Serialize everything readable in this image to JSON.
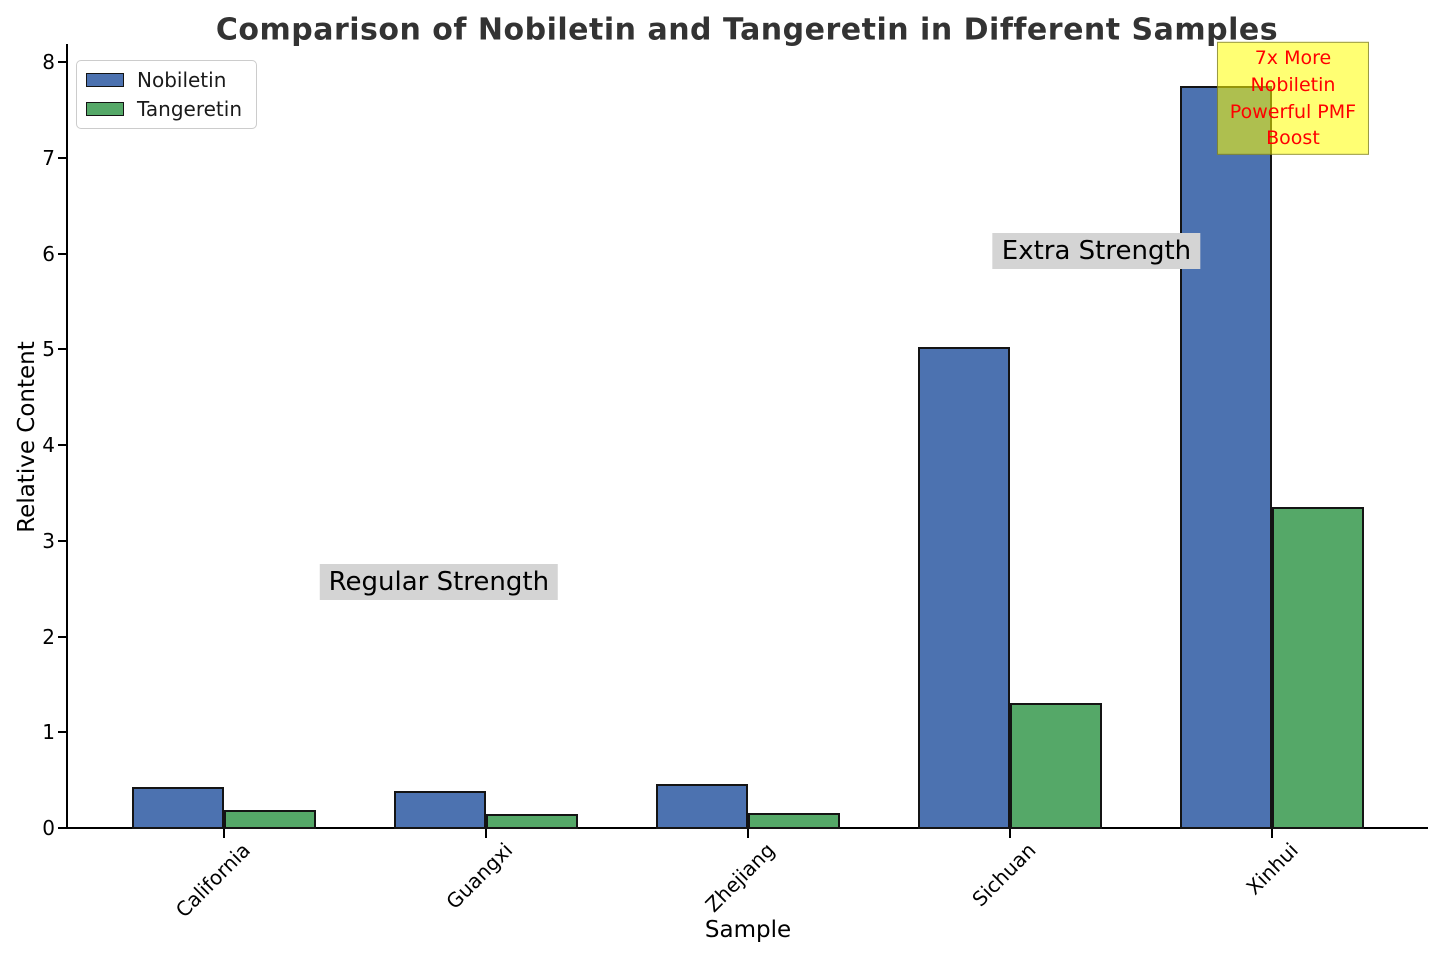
{
  "chart_data": {
    "type": "bar",
    "title": "Comparison of Nobiletin and Tangeretin in Different Samples",
    "xlabel": "Sample",
    "ylabel": "Relative Content",
    "categories": [
      "California",
      "Guangxi",
      "Zhejiang",
      "Sichuan",
      "Xinhui"
    ],
    "series": [
      {
        "name": "Nobiletin",
        "color": "#4C72B0",
        "values": [
          0.43,
          0.39,
          0.46,
          5.02,
          7.75
        ]
      },
      {
        "name": "Tangeretin",
        "color": "#55A868",
        "values": [
          0.19,
          0.15,
          0.16,
          1.31,
          3.35
        ]
      }
    ],
    "ylim": [
      0,
      8.2
    ],
    "yticks": [
      0,
      1,
      2,
      3,
      4,
      5,
      6,
      7,
      8
    ],
    "grid": false,
    "legend_position": "upper left",
    "annotations": [
      {
        "id": "regular-strength",
        "text": "Regular Strength",
        "style": "gray-box",
        "x": 0.82,
        "y": 2.57,
        "color": "#000000",
        "bg": "#d4d4d4"
      },
      {
        "id": "extra-strength",
        "text": "Extra Strength",
        "style": "gray-box",
        "x": 3.33,
        "y": 6.03,
        "color": "#000000",
        "bg": "#d4d4d4"
      },
      {
        "id": "pmf-boost",
        "text": "7x More Nobiletin\nPowerful PMF Boost",
        "style": "yellow-box",
        "x": 4.08,
        "y": 7.62,
        "color": "#ff0000",
        "bg": "#ffff00"
      }
    ]
  }
}
